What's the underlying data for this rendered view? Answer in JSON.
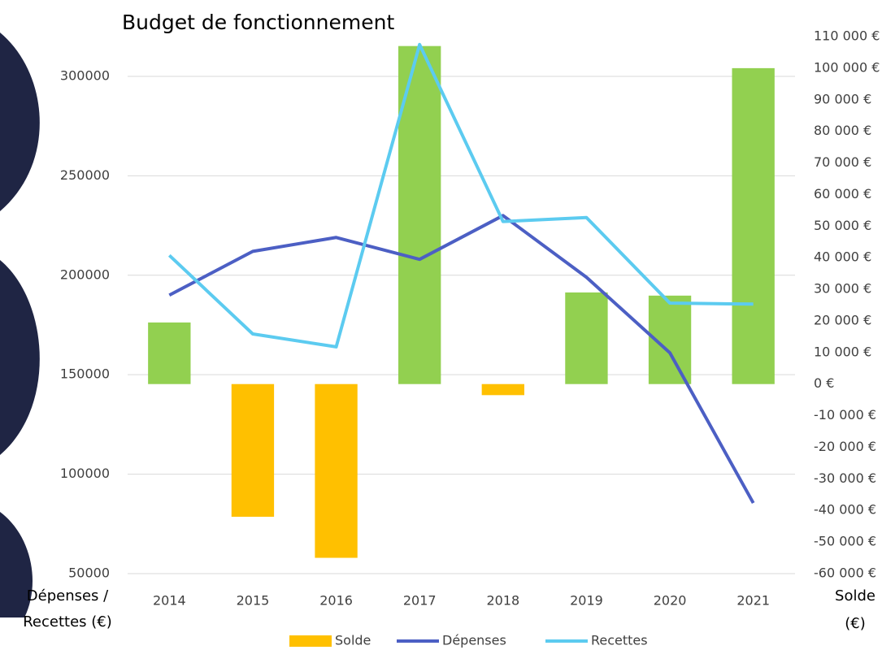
{
  "chart_data": {
    "type": "bar-line",
    "title": "Budget de fonctionnement",
    "y_label": [
      "Dépenses /",
      "Recettes (€)"
    ],
    "y2_label": [
      "Solde",
      "(€)"
    ],
    "categories": [
      "2014",
      "2015",
      "2016",
      "2017",
      "2018",
      "2019",
      "2020",
      "2021"
    ],
    "series": [
      {
        "name": "Solde",
        "type": "bar",
        "axis": "y2",
        "color": "#ffc000",
        "positive_color": "#92d050",
        "values": [
          19500,
          -42000,
          -55000,
          107000,
          -3500,
          29000,
          28000,
          100000
        ]
      },
      {
        "name": "Dépenses",
        "type": "line",
        "color": "#4c5fc4",
        "values": [
          190000,
          212000,
          219000,
          208000,
          230000,
          199000,
          161000,
          85500
        ]
      },
      {
        "name": "Recettes",
        "type": "line",
        "color": "#5ccbf0",
        "values": [
          210000,
          170500,
          164000,
          316000,
          227000,
          229000,
          186000,
          185500
        ]
      }
    ],
    "ylim": [
      50000,
      320000
    ],
    "yticks": [
      50000,
      100000,
      150000,
      200000,
      250000,
      300000
    ],
    "y2lim": [
      -60000,
      110000
    ],
    "y2ticks": [
      {
        "value": -60000,
        "label": "-60 000 €"
      },
      {
        "value": -50000,
        "label": "-50 000 €"
      },
      {
        "value": -40000,
        "label": "-40 000 €"
      },
      {
        "value": -30000,
        "label": "-30 000 €"
      },
      {
        "value": -20000,
        "label": "-20 000 €"
      },
      {
        "value": -10000,
        "label": "-10 000 €"
      },
      {
        "value": 0,
        "label": "0 €"
      },
      {
        "value": 10000,
        "label": "10 000 €"
      },
      {
        "value": 20000,
        "label": "20 000 €"
      },
      {
        "value": 30000,
        "label": "30 000 €"
      },
      {
        "value": 40000,
        "label": "40 000 €"
      },
      {
        "value": 50000,
        "label": "50 000 €"
      },
      {
        "value": 60000,
        "label": "60 000 €"
      },
      {
        "value": 70000,
        "label": "70 000 €"
      },
      {
        "value": 80000,
        "label": "80 000 €"
      },
      {
        "value": 90000,
        "label": "90 000 €"
      },
      {
        "value": 100000,
        "label": "100 000 €"
      },
      {
        "value": 110000,
        "label": "110 000 €"
      }
    ],
    "grid": true,
    "legend": "bottom"
  }
}
